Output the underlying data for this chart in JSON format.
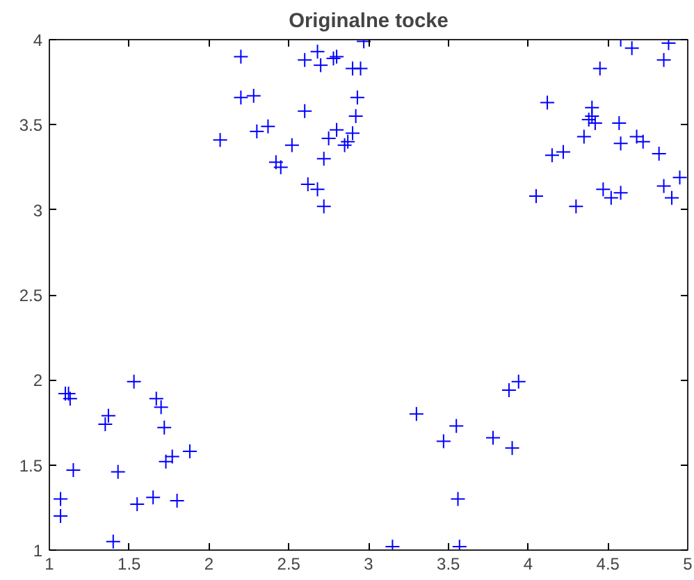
{
  "chart_data": {
    "type": "scatter",
    "title": "Originalne tocke",
    "marker": "cross",
    "grid": false,
    "xlim": [
      1,
      5
    ],
    "ylim": [
      1,
      4
    ],
    "xticks": [
      1,
      1.5,
      2,
      2.5,
      3,
      3.5,
      4,
      4.5,
      5
    ],
    "yticks": [
      1,
      1.5,
      2,
      2.5,
      3,
      3.5,
      4
    ],
    "series": [
      {
        "color": "#0000ff",
        "x": [
          2.07,
          2.2,
          2.2,
          2.28,
          2.3,
          2.37,
          2.42,
          2.45,
          2.52,
          2.6,
          2.6,
          2.62,
          2.68,
          2.68,
          2.7,
          2.72,
          2.72,
          2.75,
          2.78,
          2.8,
          2.8,
          2.85,
          2.87,
          2.9,
          2.9,
          2.92,
          2.93,
          2.95,
          2.97,
          4.05,
          4.12,
          4.15,
          4.22,
          4.3,
          4.35,
          4.38,
          4.4,
          4.4,
          4.42,
          4.45,
          4.47,
          4.52,
          4.57,
          4.58,
          4.58,
          4.58,
          4.65,
          4.68,
          4.72,
          4.82,
          4.85,
          4.85,
          4.88,
          4.9,
          4.95,
          1.07,
          1.07,
          1.1,
          1.12,
          1.13,
          1.15,
          1.35,
          1.37,
          1.4,
          1.43,
          1.53,
          1.55,
          1.65,
          1.67,
          1.7,
          1.72,
          1.73,
          1.77,
          1.8,
          1.88,
          3.15,
          3.3,
          3.47,
          3.55,
          3.56,
          3.57,
          3.78,
          3.88,
          3.9,
          3.94
        ],
        "values": [
          3.41,
          3.9,
          3.66,
          3.67,
          3.46,
          3.49,
          3.28,
          3.25,
          3.38,
          3.88,
          3.58,
          3.15,
          3.93,
          3.12,
          3.85,
          3.3,
          3.02,
          3.42,
          3.89,
          3.9,
          3.47,
          3.38,
          3.4,
          3.45,
          3.83,
          3.55,
          3.66,
          3.83,
          3.99,
          3.08,
          3.63,
          3.32,
          3.34,
          3.02,
          3.43,
          3.53,
          3.6,
          3.55,
          3.51,
          3.83,
          3.12,
          3.07,
          3.51,
          3.39,
          3.1,
          4.0,
          3.95,
          3.43,
          3.4,
          3.33,
          3.88,
          3.14,
          3.98,
          3.07,
          3.19,
          1.3,
          1.2,
          1.92,
          1.92,
          1.89,
          1.47,
          1.74,
          1.79,
          1.05,
          1.46,
          1.99,
          1.27,
          1.31,
          1.89,
          1.84,
          1.72,
          1.52,
          1.55,
          1.29,
          1.58,
          1.02,
          1.8,
          1.64,
          1.73,
          1.3,
          1.02,
          1.66,
          1.94,
          1.6,
          1.99
        ]
      }
    ]
  }
}
